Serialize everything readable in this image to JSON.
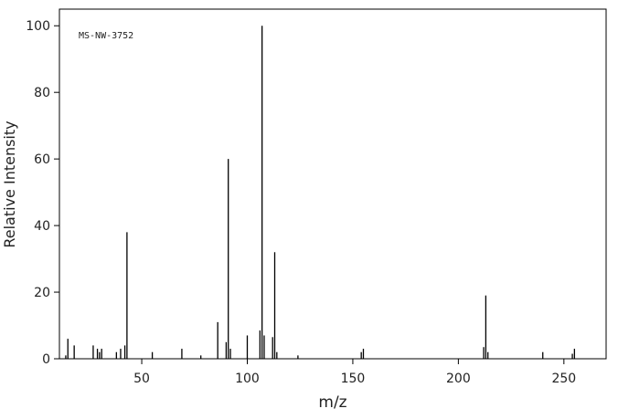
{
  "chart_data": {
    "type": "stem",
    "title": "MS-NW-3752",
    "x_label": "m/z",
    "y_label": "Relative Intensity",
    "x": [
      14,
      15,
      18,
      27,
      29,
      30,
      31,
      38,
      40,
      42,
      43,
      55,
      69,
      78,
      86,
      90,
      91,
      92,
      100,
      106,
      107,
      108,
      112,
      113,
      114,
      124,
      154,
      155,
      212,
      213,
      214,
      240,
      254,
      255
    ],
    "values": [
      1,
      6,
      4,
      4,
      3,
      2,
      3,
      2,
      3,
      4,
      38,
      2,
      3,
      1,
      11,
      5,
      60,
      3,
      7,
      8.5,
      100,
      7,
      6.5,
      32,
      2,
      1,
      2,
      3,
      3.5,
      19,
      2,
      2,
      1.5,
      3
    ],
    "color": "#000000",
    "xlim": [
      11,
      270
    ],
    "ylim": [
      0,
      105
    ],
    "xticks": [
      50,
      100,
      150,
      200,
      250
    ],
    "yticks": [
      0,
      20,
      40,
      60,
      80,
      100
    ]
  }
}
